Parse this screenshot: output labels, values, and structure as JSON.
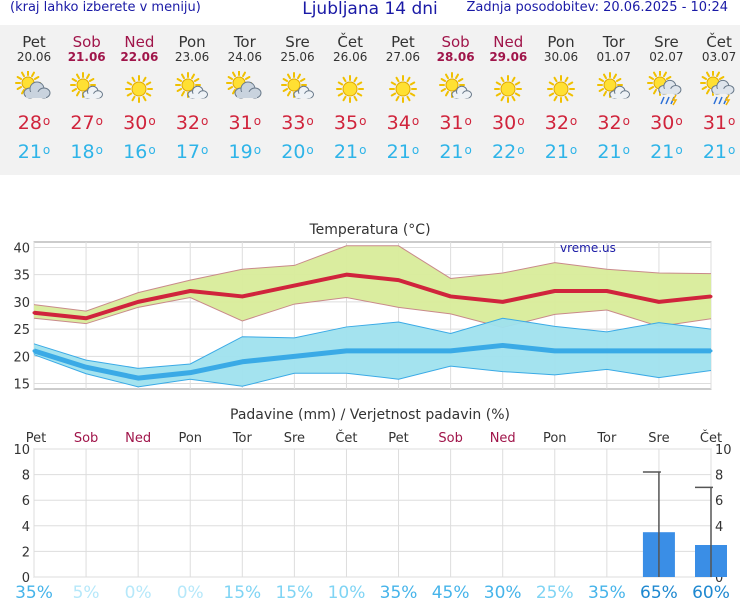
{
  "header": {
    "menu_hint": "(kraj lahko izberete v meniju)",
    "title": "Ljubljana 14 dni",
    "updated": "Zadnja posodobitev: 20.06.2025 - 10:24"
  },
  "days": [
    {
      "name": "Pet",
      "date": "20.06",
      "weekend": false,
      "icon": "partly-cloudy-icon",
      "max": "28",
      "min": "21"
    },
    {
      "name": "Sob",
      "date": "21.06",
      "weekend": true,
      "icon": "sun-cloud-icon",
      "max": "27",
      "min": "18"
    },
    {
      "name": "Ned",
      "date": "22.06",
      "weekend": true,
      "icon": "sun-icon",
      "max": "30",
      "min": "16"
    },
    {
      "name": "Pon",
      "date": "23.06",
      "weekend": false,
      "icon": "sun-cloud-icon",
      "max": "32",
      "min": "17"
    },
    {
      "name": "Tor",
      "date": "24.06",
      "weekend": false,
      "icon": "partly-cloudy-icon",
      "max": "31",
      "min": "19"
    },
    {
      "name": "Sre",
      "date": "25.06",
      "weekend": false,
      "icon": "sun-cloud-icon",
      "max": "33",
      "min": "20"
    },
    {
      "name": "Čet",
      "date": "26.06",
      "weekend": false,
      "icon": "sun-icon",
      "max": "35",
      "min": "21"
    },
    {
      "name": "Pet",
      "date": "27.06",
      "weekend": false,
      "icon": "sun-icon",
      "max": "34",
      "min": "21"
    },
    {
      "name": "Sob",
      "date": "28.06",
      "weekend": true,
      "icon": "sun-cloud-icon",
      "max": "31",
      "min": "21"
    },
    {
      "name": "Ned",
      "date": "29.06",
      "weekend": true,
      "icon": "sun-icon",
      "max": "30",
      "min": "22"
    },
    {
      "name": "Pon",
      "date": "30.06",
      "weekend": false,
      "icon": "sun-icon",
      "max": "32",
      "min": "21"
    },
    {
      "name": "Tor",
      "date": "01.07",
      "weekend": false,
      "icon": "sun-cloud-icon",
      "max": "32",
      "min": "21"
    },
    {
      "name": "Sre",
      "date": "02.07",
      "weekend": false,
      "icon": "sun-storm-icon",
      "max": "30",
      "min": "21"
    },
    {
      "name": "Čet",
      "date": "03.07",
      "weekend": false,
      "icon": "sun-storm-icon",
      "max": "31",
      "min": "21"
    }
  ],
  "chart_data": [
    {
      "type": "line",
      "title": "Temperatura (°C)",
      "watermark": "vreme.us",
      "categories": [
        "Pet",
        "Sob",
        "Ned",
        "Pon",
        "Tor",
        "Sre",
        "Čet",
        "Pet",
        "Sob",
        "Ned",
        "Pon",
        "Tor",
        "Sre",
        "Čet"
      ],
      "ylim": [
        14,
        41
      ],
      "yticks": [
        15,
        20,
        25,
        30,
        35,
        40
      ],
      "series": [
        {
          "values": [
            28,
            27,
            30,
            32,
            31,
            33,
            35,
            34,
            31,
            30,
            32,
            32,
            30,
            31
          ]
        },
        {
          "values": [
            29.5,
            28.3,
            31.7,
            34.0,
            36.0,
            36.7,
            40.3,
            40.3,
            34.3,
            35.3,
            37.2,
            36.0,
            35.3,
            35.2
          ]
        },
        {
          "values": [
            27.0,
            26.0,
            29.0,
            30.8,
            26.5,
            29.6,
            30.8,
            29.0,
            27.8,
            25.3,
            27.7,
            28.5,
            25.5,
            26.9
          ]
        },
        {
          "values": [
            21,
            18,
            16,
            17,
            19,
            20,
            21,
            21,
            21,
            22,
            21,
            21,
            21,
            21
          ]
        },
        {
          "values": [
            22.3,
            19.3,
            17.8,
            18.6,
            23.6,
            23.4,
            25.4,
            26.3,
            24.2,
            27.0,
            25.5,
            24.5,
            26.2,
            25.0
          ]
        },
        {
          "values": [
            20.3,
            16.8,
            14.4,
            15.8,
            14.5,
            16.9,
            16.9,
            15.8,
            18.2,
            17.2,
            16.6,
            17.6,
            16.1,
            17.4
          ]
        }
      ]
    },
    {
      "type": "bar",
      "title": "Padavine (mm) / Verjetnost padavin (%)",
      "categories": [
        "Pet",
        "Sob",
        "Ned",
        "Pon",
        "Tor",
        "Sre",
        "Čet",
        "Pet",
        "Sob",
        "Ned",
        "Pon",
        "Tor",
        "Sre",
        "Čet"
      ],
      "ylim": [
        0,
        10
      ],
      "yticks": [
        0,
        2,
        4,
        6,
        8,
        10
      ],
      "values": [
        0,
        0,
        0,
        0,
        0,
        0,
        0,
        0,
        0,
        0,
        0,
        0,
        3.5,
        2.5
      ],
      "max_values": [
        0,
        0,
        0,
        0,
        0,
        0,
        0,
        0,
        0,
        0,
        0,
        0,
        8.2,
        7.0
      ],
      "probability": [
        "35%",
        "5%",
        "0%",
        "0%",
        "15%",
        "15%",
        "10%",
        "35%",
        "45%",
        "30%",
        "25%",
        "35%",
        "65%",
        "60%"
      ]
    }
  ],
  "colors": {
    "max_line": "#d0243c",
    "max_band": "#d8ec9a",
    "min_line": "#3aaae6",
    "min_band": "#9fe2ee",
    "bar": "#3a8ee6",
    "weekend": "#a0154a"
  }
}
